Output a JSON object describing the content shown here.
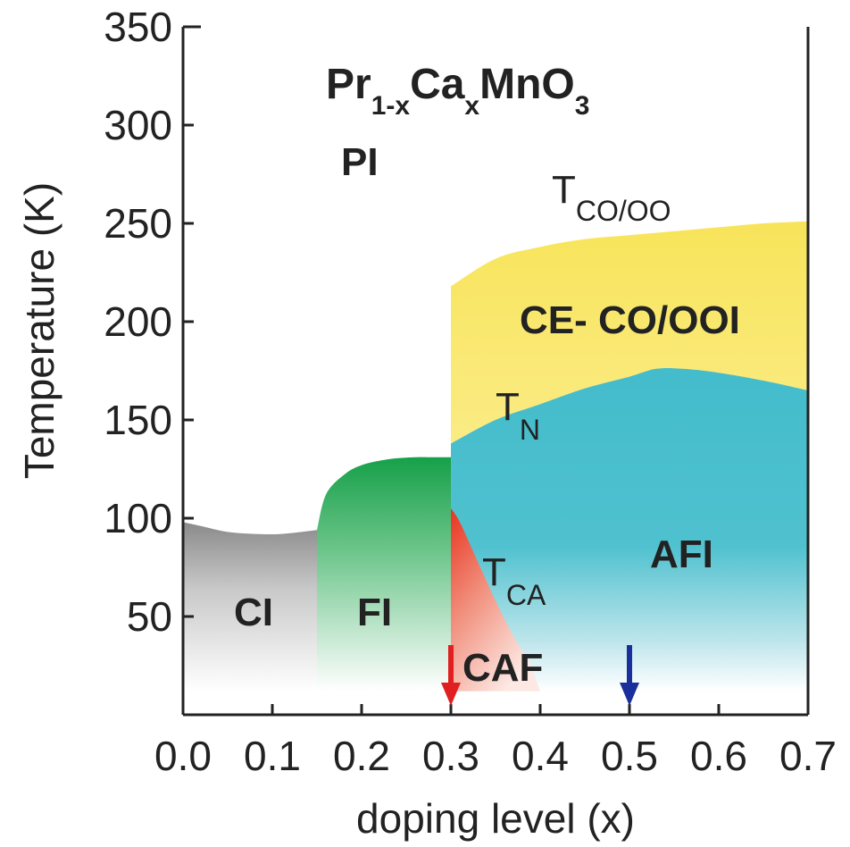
{
  "chart_data": {
    "type": "area",
    "title": "",
    "xlabel": "doping level (x)",
    "ylabel": "Temperature (K)",
    "xlim": [
      0.0,
      0.7
    ],
    "ylim": [
      0,
      350
    ],
    "x_ticks": [
      "0.0",
      "0.1",
      "0.2",
      "0.3",
      "0.4",
      "0.5",
      "0.6",
      "0.7"
    ],
    "y_ticks": [
      "50",
      "100",
      "150",
      "200",
      "250",
      "300",
      "350"
    ],
    "formula": {
      "base1": "Pr",
      "sub1": "1-x",
      "base2": "Ca",
      "sub2": "x",
      "base3": "MnO",
      "sub3": "3"
    },
    "region_labels": {
      "PI": "PI",
      "CE": "CE- CO/OOI",
      "AFI": "AFI",
      "CI": "CI",
      "FI": "FI",
      "CAF": "CAF"
    },
    "transition_labels": {
      "tco": {
        "main": "T",
        "sub": "CO/OO"
      },
      "tn": {
        "main": "T",
        "sub": "N"
      },
      "tca": {
        "main": "T",
        "sub": "CA"
      }
    },
    "phase_boundaries": {
      "CE-CO/OOI": {
        "x": [
          0.3,
          0.35,
          0.4,
          0.45,
          0.5,
          0.55,
          0.6,
          0.65,
          0.7
        ],
        "y": [
          218,
          232,
          238,
          242,
          244,
          246,
          248,
          250,
          251
        ]
      },
      "AFI": {
        "x": [
          0.3,
          0.35,
          0.4,
          0.45,
          0.5,
          0.53,
          0.56,
          0.6,
          0.65,
          0.7
        ],
        "y": [
          138,
          150,
          158,
          166,
          172,
          176,
          176,
          174,
          170,
          165
        ]
      },
      "FI": {
        "x": [
          0.15,
          0.16,
          0.18,
          0.2,
          0.23,
          0.26,
          0.28,
          0.3
        ],
        "y": [
          94,
          112,
          122,
          127,
          130,
          131,
          131,
          131
        ]
      },
      "CI": {
        "x": [
          0.0,
          0.02,
          0.05,
          0.08,
          0.11,
          0.15
        ],
        "y": [
          98,
          96,
          93,
          92,
          92,
          94
        ]
      },
      "CAF": {
        "x": [
          0.3,
          0.31,
          0.33,
          0.35,
          0.37,
          0.39
        ],
        "y": [
          105,
          98,
          78,
          58,
          40,
          25
        ]
      }
    },
    "markers": [
      {
        "x": 0.3,
        "color": "#e02020"
      },
      {
        "x": 0.5,
        "color": "#1a2f9c"
      }
    ],
    "colors": {
      "CE-CO/OOI": "#f7e45f",
      "AFI": "#49bfcd",
      "FI": "#23a44f",
      "CAF": "#e8402a",
      "CI": "#8f8f8f"
    },
    "grid": false,
    "legend": "none"
  }
}
